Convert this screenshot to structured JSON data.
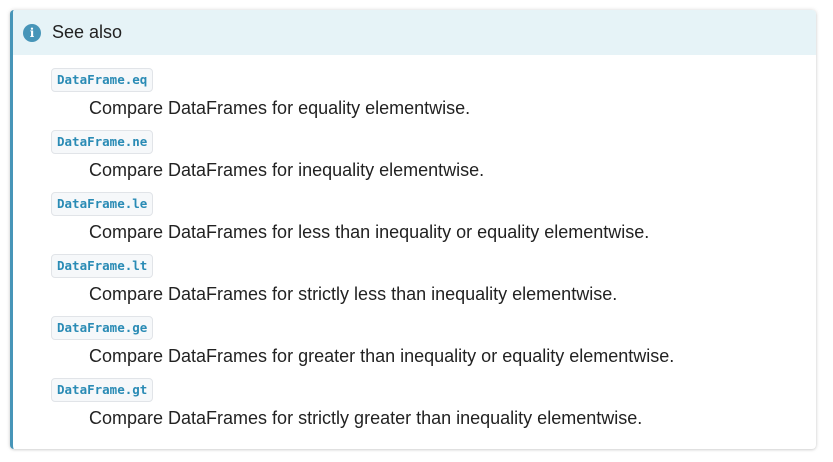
{
  "admonition": {
    "title": "See also",
    "icon": "info-icon",
    "accent_color": "#4795b8",
    "title_bg_color": "#e6f3f7",
    "entries": [
      {
        "ref": "DataFrame.eq",
        "description": "Compare DataFrames for equality elementwise."
      },
      {
        "ref": "DataFrame.ne",
        "description": "Compare DataFrames for inequality elementwise."
      },
      {
        "ref": "DataFrame.le",
        "description": "Compare DataFrames for less than inequality or equality elementwise."
      },
      {
        "ref": "DataFrame.lt",
        "description": "Compare DataFrames for strictly less than inequality elementwise."
      },
      {
        "ref": "DataFrame.ge",
        "description": "Compare DataFrames for greater than inequality or equality elementwise."
      },
      {
        "ref": "DataFrame.gt",
        "description": "Compare DataFrames for strictly greater than inequality elementwise."
      }
    ]
  }
}
